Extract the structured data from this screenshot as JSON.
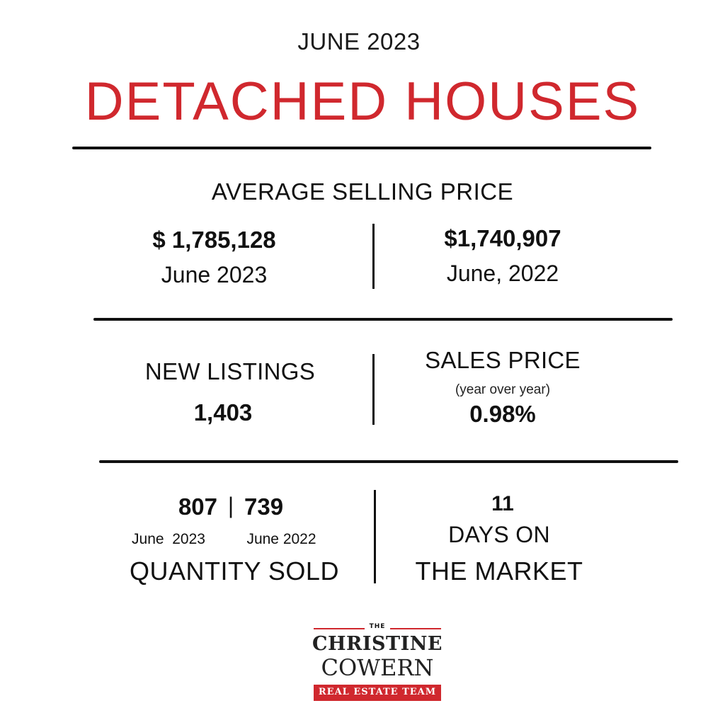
{
  "header": {
    "month": "JUNE 2023",
    "title": "DETACHED HOUSES"
  },
  "average_selling_price": {
    "heading": "AVERAGE SELLING PRICE",
    "current_value": "$ 1,785,128",
    "current_period": "June 2023",
    "previous_value": "$1,740,907",
    "previous_period": "June, 2022"
  },
  "new_listings": {
    "label": "NEW LISTINGS",
    "value": "1,403"
  },
  "sales_price": {
    "label": "SALES PRICE",
    "note": "(year over year)",
    "value": "0.98%"
  },
  "quantity_sold": {
    "current_value": "807",
    "separator": "|",
    "previous_value": "739",
    "current_period": "June  2023",
    "previous_period": "June 2022",
    "label": "QUANTITY SOLD"
  },
  "days_on_market": {
    "value": "11",
    "label_line1": "DAYS ON",
    "label_line2": "THE MARKET"
  },
  "logo": {
    "the": "THE",
    "line1": "CHRISTINE",
    "line2": "COWERN",
    "tagline": "REAL ESTATE TEAM",
    "accent_color": "#d0282e"
  }
}
